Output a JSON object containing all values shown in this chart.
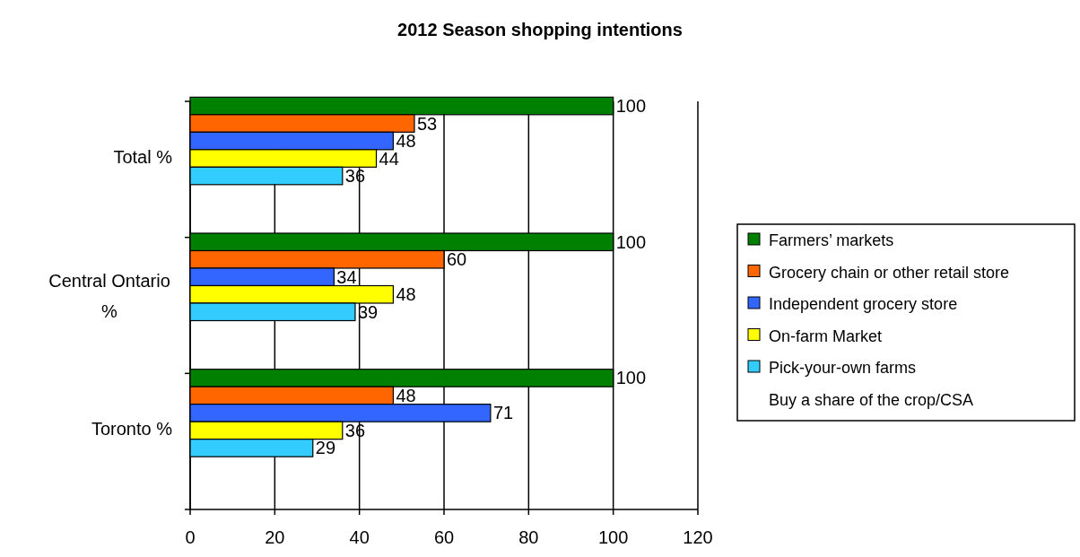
{
  "chart_data": {
    "type": "bar",
    "orientation": "horizontal",
    "title": "2012 Season shopping intentions",
    "categories": [
      "Total %",
      "Central Ontario %",
      "Toronto %"
    ],
    "series": [
      {
        "name": "Farmers’ markets",
        "color": "#008000",
        "values": [
          100,
          100,
          100
        ]
      },
      {
        "name": "Grocery chain or other retail store",
        "color": "#ff6600",
        "values": [
          53,
          60,
          48
        ]
      },
      {
        "name": "Independent grocery store",
        "color": "#3366ff",
        "values": [
          48,
          34,
          71
        ]
      },
      {
        "name": "On-farm Market",
        "color": "#ffff00",
        "values": [
          44,
          48,
          36
        ]
      },
      {
        "name": "Pick-your-own farms",
        "color": "#33ccff",
        "values": [
          36,
          39,
          29
        ]
      },
      {
        "name": "Buy a share of the crop/CSA",
        "values": [
          null,
          null,
          null
        ]
      }
    ],
    "xlim": [
      0,
      120
    ],
    "xticks": [
      0,
      20,
      40,
      60,
      80,
      100,
      120
    ],
    "grid": "x",
    "legend": "right",
    "data_labels": true
  }
}
